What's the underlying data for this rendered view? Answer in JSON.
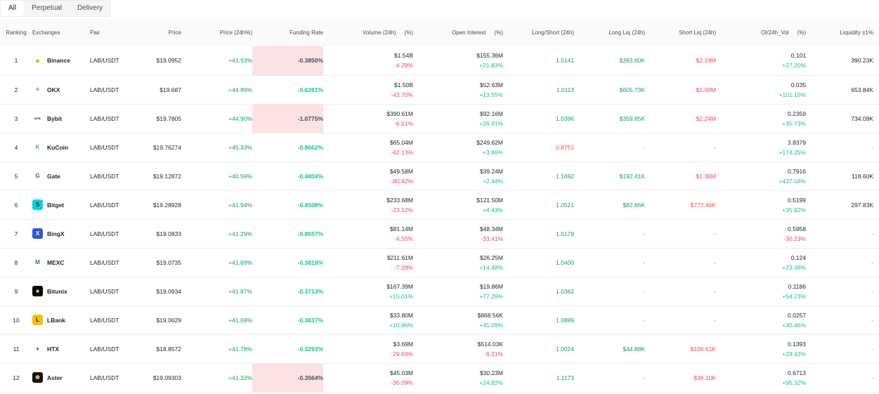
{
  "tabs": [
    "All",
    "Perpetual",
    "Delivery"
  ],
  "headers": {
    "ranking": "Ranking",
    "exchanges": "Exchanges",
    "pair": "Pair",
    "price": "Price",
    "price_change": "Price (24h%)",
    "funding": "Funding Rate",
    "volume": "Volume (24h)",
    "volume_pct": "(%)",
    "oi": "Open Interest",
    "oi_pct": "(%)",
    "ls": "Long/Short (24h)",
    "long_liq": "Long Liq (24h)",
    "short_liq": "Short Liq (24h)",
    "oi_vol": "OI/24h_Vol",
    "oi_vol_pct": "(%)",
    "liquidity": "Liquidity ±1%"
  },
  "rows": [
    {
      "rank": "1",
      "exchange": "Binance",
      "pair": "LAB/USDT",
      "price": "$19.0952",
      "change": "+41.93%",
      "funding": "-0.3850%",
      "vol": "$1.54B",
      "vol_pct": "-4.28%",
      "oi": "$155.36M",
      "oi_pct": "+21.83%",
      "ls": "1.0141",
      "long_liq": "$393.80K",
      "short_liq": "$2.19M",
      "oi_vol": "0.101",
      "oi_vol_pct": "+27.20%",
      "liq": "390.23K"
    },
    {
      "rank": "2",
      "exchange": "OKX",
      "pair": "LAB/USDT",
      "price": "$19.687",
      "change": "+44.89%",
      "funding": "-0.6281%",
      "vol": "$1.50B",
      "vol_pct": "-43.70%",
      "oi": "$52.63M",
      "oi_pct": "+13.55%",
      "ls": "1.0113",
      "long_liq": "$605.73K",
      "short_liq": "$1.69M",
      "oi_vol": "0.035",
      "oi_vol_pct": "+101.15%",
      "liq": "653.84K"
    },
    {
      "rank": "3",
      "exchange": "Bybit",
      "pair": "LAB/USDT",
      "price": "$19.7805",
      "change": "+44.90%",
      "funding": "-1.0775%",
      "vol": "$390.61M",
      "vol_pct": "-6.51%",
      "oi": "$92.16M",
      "oi_pct": "+26.91%",
      "ls": "1.0396",
      "long_liq": "$359.85K",
      "short_liq": "$2.24M",
      "oi_vol": "0.2359",
      "oi_vol_pct": "+35.73%",
      "liq": "734.09K"
    },
    {
      "rank": "4",
      "exchange": "KuCoin",
      "pair": "LAB/USDT",
      "price": "$19.76274",
      "change": "+45.33%",
      "funding": "-0.8662%",
      "vol": "$65.04M",
      "vol_pct": "-62.13%",
      "oi": "$249.62M",
      "oi_pct": "+3.86%",
      "ls": "0.8751",
      "long_liq": "-",
      "short_liq": "-",
      "oi_vol": "3.8379",
      "oi_vol_pct": "+174.25%",
      "liq": "-"
    },
    {
      "rank": "5",
      "exchange": "Gate",
      "pair": "LAB/USDT",
      "price": "$19.12872",
      "change": "+40.59%",
      "funding": "-0.4804%",
      "vol": "$49.58M",
      "vol_pct": "-80.92%",
      "oi": "$39.24M",
      "oi_pct": "+2.44%",
      "ls": "1.1692",
      "long_liq": "$192.41K",
      "short_liq": "$1.36M",
      "oi_vol": "0.7916",
      "oi_vol_pct": "+437.04%",
      "liq": "118.60K"
    },
    {
      "rank": "6",
      "exchange": "Bitget",
      "pair": "LAB/USDT",
      "price": "$19.28928",
      "change": "+41.94%",
      "funding": "-0.4508%",
      "vol": "$233.68M",
      "vol_pct": "-23.12%",
      "oi": "$121.50M",
      "oi_pct": "+4.43%",
      "ls": "1.0521",
      "long_liq": "$82.86K",
      "short_liq": "$772.46K",
      "oi_vol": "0.5199",
      "oi_vol_pct": "+35.82%",
      "liq": "297.83K"
    },
    {
      "rank": "7",
      "exchange": "BingX",
      "pair": "LAB/USDT",
      "price": "$19.0833",
      "change": "+41.29%",
      "funding": "-0.8657%",
      "vol": "$81.14M",
      "vol_pct": "-4.55%",
      "oi": "$48.34M",
      "oi_pct": "-33.41%",
      "ls": "1.0178",
      "long_liq": "-",
      "short_liq": "-",
      "oi_vol": "0.5958",
      "oi_vol_pct": "-30.23%",
      "liq": "-"
    },
    {
      "rank": "8",
      "exchange": "MEXC",
      "pair": "LAB/USDT",
      "price": "$19.0735",
      "change": "+41.69%",
      "funding": "-0.3819%",
      "vol": "$211.61M",
      "vol_pct": "-7.28%",
      "oi": "$26.25M",
      "oi_pct": "+14.48%",
      "ls": "1.0400",
      "long_liq": "-",
      "short_liq": "-",
      "oi_vol": "0.124",
      "oi_vol_pct": "+23.38%",
      "liq": "-"
    },
    {
      "rank": "9",
      "exchange": "Bitunix",
      "pair": "LAB/USDT",
      "price": "$19.0934",
      "change": "+41.87%",
      "funding": "-0.3713%",
      "vol": "$167.39M",
      "vol_pct": "+15.01%",
      "oi": "$19.86M",
      "oi_pct": "+77.29%",
      "ls": "1.0362",
      "long_liq": "-",
      "short_liq": "-",
      "oi_vol": "0.1186",
      "oi_vol_pct": "+54.23%",
      "liq": "-"
    },
    {
      "rank": "10",
      "exchange": "LBank",
      "pair": "LAB/USDT",
      "price": "$19.0629",
      "change": "+41.69%",
      "funding": "-0.3837%",
      "vol": "$33.80M",
      "vol_pct": "+10.96%",
      "oi": "$868.56K",
      "oi_pct": "+45.09%",
      "ls": "1.0899",
      "long_liq": "-",
      "short_liq": "-",
      "oi_vol": "0.0257",
      "oi_vol_pct": "+30.46%",
      "liq": "-"
    },
    {
      "rank": "11",
      "exchange": "HTX",
      "pair": "LAB/USDT",
      "price": "$18.8572",
      "change": "+41.78%",
      "funding": "-0.3293%",
      "vol": "$3.69M",
      "vol_pct": "-29.69%",
      "oi": "$514.03K",
      "oi_pct": "-6.21%",
      "ls": "1.0024",
      "long_liq": "$44.88K",
      "short_liq": "$106.61K",
      "oi_vol": "0.1393",
      "oi_vol_pct": "+33.43%",
      "liq": "-"
    },
    {
      "rank": "12",
      "exchange": "Aster",
      "pair": "LAB/USDT",
      "price": "$19.09303",
      "change": "+41.33%",
      "funding": "-0.3564%",
      "vol": "$45.03M",
      "vol_pct": "-36.09%",
      "oi": "$30.23M",
      "oi_pct": "+24.82%",
      "ls": "1.1173",
      "long_liq": "-",
      "short_liq": "$36.10K",
      "oi_vol": "0.6713",
      "oi_vol_pct": "+95.32%",
      "liq": "-"
    }
  ],
  "logos": {
    "Binance": {
      "icon": "binance-icon",
      "bg": "#ffffff",
      "fg": "#f0b90b",
      "glyph": "◆"
    },
    "OKX": {
      "icon": "okx-icon",
      "bg": "#ffffff",
      "fg": "#000000",
      "glyph": "⁘"
    },
    "Bybit": {
      "icon": "bybit-icon",
      "bg": "#ffffff",
      "fg": "#111111",
      "glyph": "BYB"
    },
    "KuCoin": {
      "icon": "kucoin-icon",
      "bg": "#ffffff",
      "fg": "#23af91",
      "glyph": "K"
    },
    "Gate": {
      "icon": "gate-icon",
      "bg": "#ffffff",
      "fg": "#2354e6",
      "glyph": "G"
    },
    "Bitget": {
      "icon": "bitget-icon",
      "bg": "#00d4e6",
      "fg": "#000000",
      "glyph": "S"
    },
    "BingX": {
      "icon": "bingx-icon",
      "bg": "#2a5ada",
      "fg": "#ffffff",
      "glyph": "X"
    },
    "MEXC": {
      "icon": "mexc-icon",
      "bg": "#ffffff",
      "fg": "#1972e2",
      "glyph": "M"
    },
    "Bitunix": {
      "icon": "bitunix-icon",
      "bg": "#000000",
      "fg": "#b6f000",
      "glyph": "■"
    },
    "LBank": {
      "icon": "lbank-icon",
      "bg": "#f5c400",
      "fg": "#000000",
      "glyph": "L"
    },
    "HTX": {
      "icon": "htx-icon",
      "bg": "#ffffff",
      "fg": "#2a5ada",
      "glyph": "♦"
    },
    "Aster": {
      "icon": "aster-icon",
      "bg": "#111111",
      "fg": "#f2a654",
      "glyph": "✺"
    }
  },
  "highlighted_funding_rows": [
    0,
    2,
    11
  ],
  "colors": {
    "green": "#0ecb81",
    "red": "#f6465d",
    "highlight": "#fde2e4"
  }
}
